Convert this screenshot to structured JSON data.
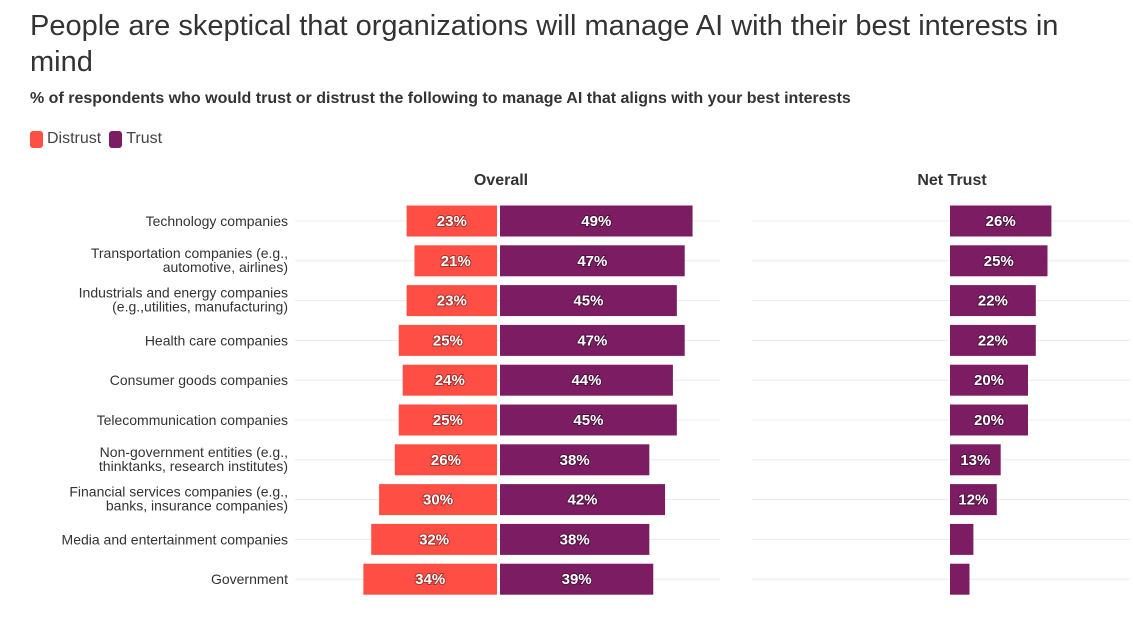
{
  "title": "People are skeptical that organizations will manage AI with their best interests in mind",
  "subtitle": "% of respondents who would trust or distrust the following to manage AI that aligns with your best interests",
  "legend": [
    {
      "label": "Distrust",
      "color": "#ff4f45"
    },
    {
      "label": "Trust",
      "color": "#7c1d63"
    }
  ],
  "chart_data": {
    "type": "bar",
    "column_titles": {
      "overall": "Overall",
      "net": "Net Trust"
    },
    "categories": [
      [
        "Technology companies"
      ],
      [
        "Transportation companies (e.g.,",
        "automotive, airlines)"
      ],
      [
        "Industrials and energy companies",
        "(e.g.,utilities, manufacturing)"
      ],
      [
        "Health care companies"
      ],
      [
        "Consumer goods companies"
      ],
      [
        "Telecommunication companies"
      ],
      [
        "Non-government entities (e.g.,",
        "thinktanks, research institutes)"
      ],
      [
        "Financial services companies (e.g.,",
        "banks, insurance companies)"
      ],
      [
        "Media and entertainment companies"
      ],
      [
        "Government"
      ]
    ],
    "series": [
      {
        "name": "Distrust",
        "color": "#ff4f45",
        "values": [
          23,
          21,
          23,
          25,
          24,
          25,
          26,
          30,
          32,
          34
        ]
      },
      {
        "name": "Trust",
        "color": "#7c1d63",
        "values": [
          49,
          47,
          45,
          47,
          44,
          45,
          38,
          42,
          38,
          39
        ]
      },
      {
        "name": "Net Trust",
        "color": "#7c1d63",
        "values": [
          26,
          25,
          22,
          22,
          20,
          20,
          13,
          12,
          6,
          5
        ],
        "labels_shown": [
          true,
          true,
          true,
          true,
          true,
          true,
          true,
          true,
          false,
          false
        ]
      }
    ],
    "grid": true
  }
}
